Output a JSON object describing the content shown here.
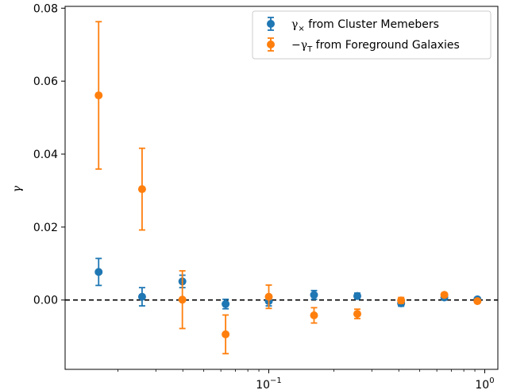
{
  "chart_data": {
    "type": "scatter",
    "title": "",
    "xlabel": "",
    "ylabel": "γ",
    "xscale": "log",
    "xlim": [
      0.0114,
      1.15
    ],
    "ylim": [
      -0.019,
      0.0805
    ],
    "y_ticks": [
      0.0,
      0.02,
      0.04,
      0.06,
      0.08
    ],
    "y_tick_labels": [
      "0.00",
      "0.02",
      "0.04",
      "0.06",
      "0.08"
    ],
    "x_ticks": [
      {
        "value": 0.1,
        "base": "10",
        "exp": "−1"
      },
      {
        "value": 1.0,
        "base": "10",
        "exp": "0"
      }
    ],
    "reference_line": {
      "y": 0.0,
      "style": "dashed",
      "color": "#000000"
    },
    "grid": false,
    "legend_position": "top-right",
    "series": [
      {
        "name": "γ× from Cluster Memebers",
        "color": "#1f77b4",
        "x": [
          0.0163,
          0.0259,
          0.0398,
          0.0631,
          0.1,
          0.162,
          0.257,
          0.41,
          0.65,
          0.925
        ],
        "y": [
          0.0077,
          0.0009,
          0.0051,
          -0.0011,
          -0.0003,
          0.0014,
          0.0011,
          -0.0009,
          0.0007,
          0.0002
        ],
        "err": [
          0.0037,
          0.0025,
          0.0017,
          0.0013,
          0.0013,
          0.0012,
          0.0008,
          0.0008,
          0.0006,
          0.0004
        ]
      },
      {
        "name": "−γT from Foreground Galaxies",
        "color": "#ff7f0e",
        "x": [
          0.0163,
          0.0259,
          0.0398,
          0.0631,
          0.1,
          0.162,
          0.257,
          0.41,
          0.65,
          0.925
        ],
        "y": [
          0.0561,
          0.0304,
          0.0001,
          -0.0094,
          0.0009,
          -0.0042,
          -0.0038,
          -0.0001,
          0.0014,
          -0.0003
        ],
        "err": [
          0.0202,
          0.0112,
          0.0079,
          0.0053,
          0.0032,
          0.0021,
          0.0013,
          0.0008,
          0.0006,
          0.0004
        ]
      }
    ]
  },
  "legend": {
    "series1": {
      "symbol": "γ",
      "sub": "×",
      "text": " from Cluster Memebers"
    },
    "series2": {
      "symbol": "−γ",
      "sub": "T",
      "text": " from Foreground Galaxies"
    }
  }
}
